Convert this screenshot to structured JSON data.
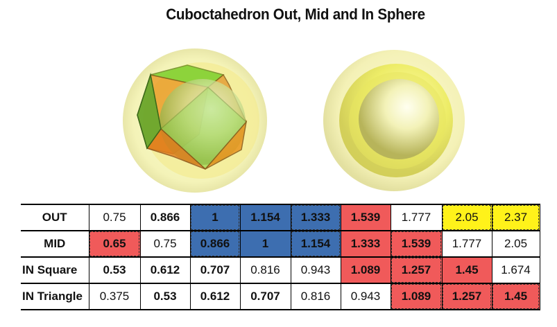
{
  "title": "Cuboctahedron Out, Mid and In Sphere",
  "images": [
    {
      "name": "cuboctahedron-in-spheres",
      "description": "Green/orange cuboctahedron inside translucent yellow spheres"
    },
    {
      "name": "nested-spheres",
      "description": "Nested translucent yellow spheres"
    }
  ],
  "colors": {
    "blue": "#3d6eb0",
    "red": "#f05a5a",
    "yellow": "#fff21a",
    "grey_text": "#b3b3b3"
  },
  "table": {
    "rows": [
      {
        "label": "OUT",
        "cells": [
          {
            "v": "0.75",
            "style": "g"
          },
          {
            "v": "0.866",
            "style": "b"
          },
          {
            "v": "1",
            "style": "b blue dash"
          },
          {
            "v": "1.154",
            "style": "b blue"
          },
          {
            "v": "1.333",
            "style": "b blue dash"
          },
          {
            "v": "1.539",
            "style": "b red"
          },
          {
            "v": "1.777",
            "style": "n"
          },
          {
            "v": "2.05",
            "style": "n yellow dash"
          },
          {
            "v": "2.37",
            "style": "n yellow dash"
          }
        ]
      },
      {
        "label": "MID",
        "cells": [
          {
            "v": "0.65",
            "style": "b red dash"
          },
          {
            "v": "0.75",
            "style": "g"
          },
          {
            "v": "0.866",
            "style": "b blue dash"
          },
          {
            "v": "1",
            "style": "b blue"
          },
          {
            "v": "1.154",
            "style": "b blue dash"
          },
          {
            "v": "1.333",
            "style": "b red"
          },
          {
            "v": "1.539",
            "style": "b red dash"
          },
          {
            "v": "1.777",
            "style": "n"
          },
          {
            "v": "2.05",
            "style": "n"
          }
        ]
      },
      {
        "label": "IN Square",
        "cells": [
          {
            "v": "0.53",
            "style": "b"
          },
          {
            "v": "0.612",
            "style": "b"
          },
          {
            "v": "0.707",
            "style": "b"
          },
          {
            "v": "0.816",
            "style": "g"
          },
          {
            "v": "0.943",
            "style": "g"
          },
          {
            "v": "1.089",
            "style": "b red"
          },
          {
            "v": "1.257",
            "style": "b red dash"
          },
          {
            "v": "1.45",
            "style": "b red"
          },
          {
            "v": "1.674",
            "style": "g"
          }
        ]
      },
      {
        "label": "IN Triangle",
        "cells": [
          {
            "v": "0.375",
            "style": "g"
          },
          {
            "v": "0.53",
            "style": "b"
          },
          {
            "v": "0.612",
            "style": "b"
          },
          {
            "v": "0.707",
            "style": "b"
          },
          {
            "v": "0.816",
            "style": "g"
          },
          {
            "v": "0.943",
            "style": "g"
          },
          {
            "v": "1.089",
            "style": "b red dash"
          },
          {
            "v": "1.257",
            "style": "b red dash"
          },
          {
            "v": "1.45",
            "style": "b red dash"
          }
        ]
      }
    ]
  }
}
